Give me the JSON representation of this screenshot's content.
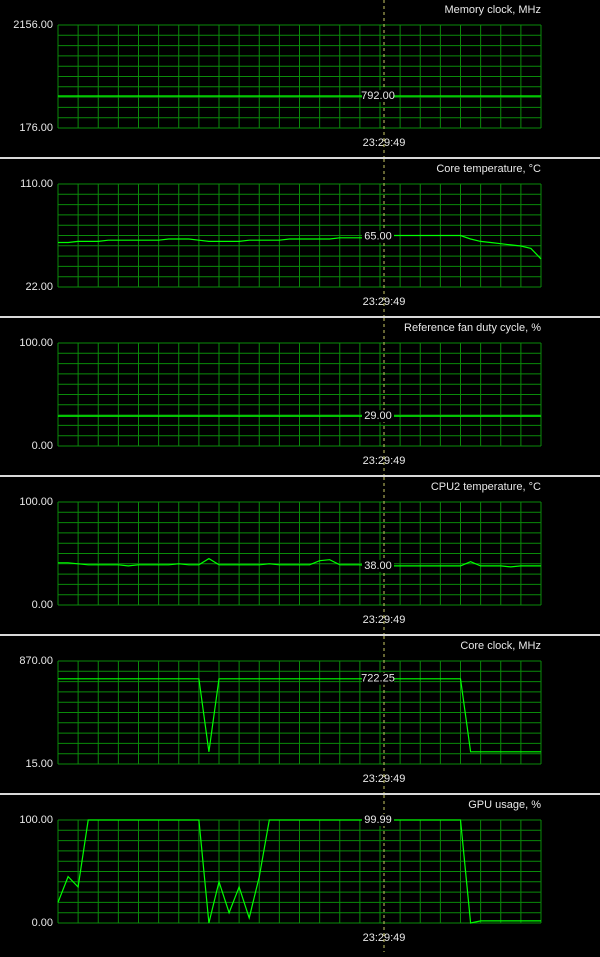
{
  "chart_data": [
    {
      "type": "line",
      "title": "Memory clock, MHz",
      "ylim": [
        176,
        2156
      ],
      "yticks": [
        {
          "value": 176,
          "label": "176.00"
        },
        {
          "value": 2156,
          "label": "2156.00"
        }
      ],
      "cursor_time": "23:29:49",
      "cursor_value": {
        "value": 792,
        "label": "792.00"
      },
      "color": "#00ff00",
      "values": [
        792,
        792,
        792,
        792,
        792,
        792,
        792,
        792,
        792,
        792,
        792,
        792,
        792,
        792,
        792,
        792,
        792,
        792,
        792,
        792,
        792,
        792,
        792,
        792,
        792,
        792,
        792,
        792,
        792,
        792,
        792,
        792,
        792,
        792,
        792,
        792,
        792,
        792,
        792,
        792,
        792,
        792,
        792,
        792,
        792,
        792,
        792,
        792,
        792
      ]
    },
    {
      "type": "line",
      "title": "Core temperature, °C",
      "ylim": [
        22,
        110
      ],
      "yticks": [
        {
          "value": 22,
          "label": "22.00"
        },
        {
          "value": 110,
          "label": "110.00"
        }
      ],
      "cursor_time": "23:29:49",
      "cursor_value": {
        "value": 65,
        "label": "65.00"
      },
      "color": "#00ff00",
      "values": [
        60,
        60,
        61,
        61,
        61,
        62,
        62,
        62,
        62,
        62,
        62,
        63,
        63,
        63,
        62,
        61,
        61,
        61,
        61,
        62,
        62,
        62,
        62,
        63,
        63,
        63,
        63,
        63,
        64,
        64,
        64,
        64,
        64,
        66,
        66,
        66,
        66,
        66,
        66,
        66,
        66,
        63,
        61,
        60,
        59,
        58,
        57,
        55,
        46
      ]
    },
    {
      "type": "line",
      "title": "Reference fan duty cycle, %",
      "ylim": [
        0,
        100
      ],
      "yticks": [
        {
          "value": 0,
          "label": "0.00"
        },
        {
          "value": 100,
          "label": "100.00"
        }
      ],
      "cursor_time": "23:29:49",
      "cursor_value": {
        "value": 29,
        "label": "29.00"
      },
      "color": "#00ff00",
      "values": [
        29,
        29,
        29,
        29,
        29,
        29,
        29,
        29,
        29,
        29,
        29,
        29,
        29,
        29,
        29,
        29,
        29,
        29,
        29,
        29,
        29,
        29,
        29,
        29,
        29,
        29,
        29,
        29,
        29,
        29,
        29,
        29,
        29,
        29,
        29,
        29,
        29,
        29,
        29,
        29,
        29,
        29,
        29,
        29,
        29,
        29,
        29,
        29,
        29
      ]
    },
    {
      "type": "line",
      "title": "CPU2 temperature, °C",
      "ylim": [
        0,
        100
      ],
      "yticks": [
        {
          "value": 0,
          "label": "0.00"
        },
        {
          "value": 100,
          "label": "100.00"
        }
      ],
      "cursor_time": "23:29:49",
      "cursor_value": {
        "value": 38,
        "label": "38.00"
      },
      "color": "#00ff00",
      "values": [
        41,
        41,
        40,
        39,
        39,
        39,
        39,
        38,
        39,
        39,
        39,
        39,
        40,
        39,
        39,
        45,
        39,
        39,
        39,
        39,
        39,
        40,
        39,
        39,
        39,
        39,
        43,
        44,
        39,
        39,
        39,
        38,
        38,
        38,
        38,
        38,
        38,
        38,
        38,
        38,
        38,
        42,
        38,
        38,
        38,
        37,
        38,
        38,
        38
      ]
    },
    {
      "type": "line",
      "title": "Core clock, MHz",
      "ylim": [
        15,
        870
      ],
      "yticks": [
        {
          "value": 15,
          "label": "15.00"
        },
        {
          "value": 870,
          "label": "870.00"
        }
      ],
      "cursor_time": "23:29:49",
      "cursor_value": {
        "value": 722.25,
        "label": "722.25"
      },
      "color": "#00ff00",
      "values": [
        722,
        722,
        722,
        722,
        722,
        722,
        722,
        722,
        722,
        722,
        722,
        722,
        722,
        722,
        722,
        116,
        722,
        722,
        722,
        722,
        722,
        722,
        722,
        722,
        722,
        722,
        722,
        722,
        722,
        722,
        722,
        722,
        722,
        722,
        722,
        722,
        722,
        722,
        722,
        722,
        722,
        116,
        116,
        116,
        116,
        116,
        116,
        116,
        116
      ]
    },
    {
      "type": "line",
      "title": "GPU usage, %",
      "ylim": [
        0,
        100
      ],
      "yticks": [
        {
          "value": 0,
          "label": "0.00"
        },
        {
          "value": 100,
          "label": "100.00"
        }
      ],
      "cursor_time": "23:29:49",
      "cursor_value": {
        "value": 99.99,
        "label": "99.99"
      },
      "color": "#00ff00",
      "values": [
        20,
        45,
        35,
        100,
        100,
        100,
        100,
        100,
        100,
        100,
        100,
        100,
        100,
        100,
        100,
        0,
        40,
        10,
        35,
        5,
        45,
        100,
        100,
        100,
        100,
        100,
        100,
        100,
        100,
        100,
        100,
        100,
        100,
        100,
        100,
        100,
        100,
        100,
        100,
        100,
        100,
        0,
        2,
        2,
        2,
        2,
        2,
        2,
        2
      ]
    }
  ]
}
